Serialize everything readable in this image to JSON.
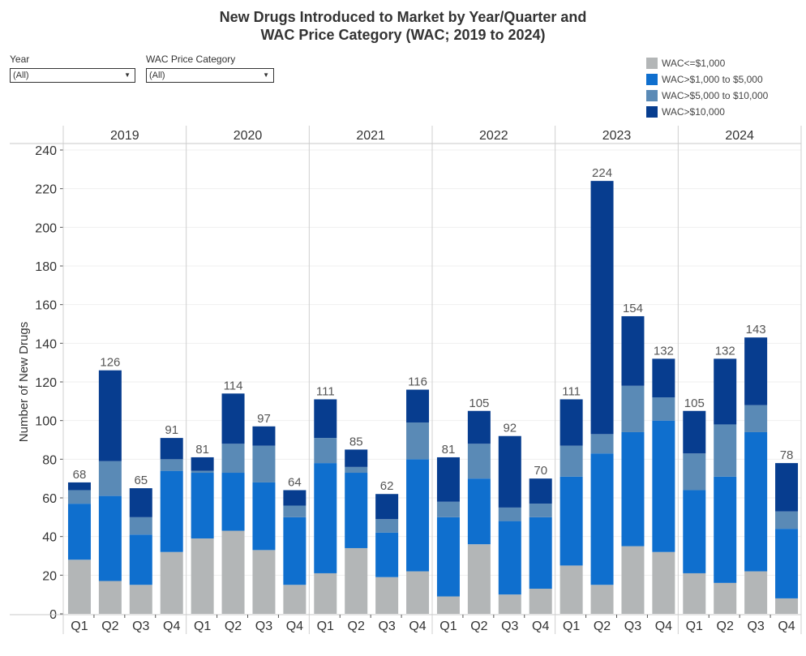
{
  "title_line1": "New Drugs Introduced to Market by Year/Quarter and",
  "title_line2": "WAC Price Category (WAC; 2019 to 2024)",
  "filters": [
    {
      "label": "Year",
      "value": "(All)",
      "icon": "dropdown-arrow-icon"
    },
    {
      "label": "WAC Price Category",
      "value": "(All)",
      "icon": "dropdown-arrow-icon"
    }
  ],
  "chart_data": {
    "type": "bar",
    "stacked": true,
    "title": "New Drugs Introduced to Market by Year/Quarter and WAC Price Category (WAC; 2019 to 2024)",
    "xlabel": "",
    "ylabel": "Number of New Drugs",
    "ylim": [
      0,
      240
    ],
    "yticks": [
      0,
      20,
      40,
      60,
      80,
      100,
      120,
      140,
      160,
      180,
      200,
      220,
      240
    ],
    "grid": true,
    "legend_position": "top-right",
    "years": [
      "2019",
      "2020",
      "2021",
      "2022",
      "2023",
      "2024"
    ],
    "quarters": [
      "Q1",
      "Q2",
      "Q3",
      "Q4"
    ],
    "categories": [
      "2019 Q1",
      "2019 Q2",
      "2019 Q3",
      "2019 Q4",
      "2020 Q1",
      "2020 Q2",
      "2020 Q3",
      "2020 Q4",
      "2021 Q1",
      "2021 Q2",
      "2021 Q3",
      "2021 Q4",
      "2022 Q1",
      "2022 Q2",
      "2022 Q3",
      "2022 Q4",
      "2023 Q1",
      "2023 Q2",
      "2023 Q3",
      "2023 Q4",
      "2024 Q1",
      "2024 Q2",
      "2024 Q3",
      "2024 Q4"
    ],
    "series": [
      {
        "name": "WAC<=$1,000",
        "color": "#b3b6b7",
        "values": [
          28,
          17,
          15,
          32,
          39,
          43,
          33,
          15,
          21,
          34,
          19,
          22,
          9,
          36,
          10,
          13,
          25,
          15,
          35,
          32,
          21,
          16,
          22,
          8
        ]
      },
      {
        "name": "WAC>$1,000 to $5,000",
        "color": "#0f6fce",
        "values": [
          29,
          44,
          26,
          42,
          34,
          30,
          35,
          35,
          57,
          39,
          23,
          58,
          41,
          34,
          38,
          37,
          46,
          68,
          59,
          68,
          43,
          55,
          72,
          36
        ]
      },
      {
        "name": "WAC>$5,000 to $10,000",
        "color": "#5a8ab6",
        "values": [
          7,
          18,
          9,
          6,
          1,
          15,
          19,
          6,
          13,
          3,
          7,
          19,
          8,
          18,
          7,
          7,
          16,
          10,
          24,
          12,
          19,
          27,
          14,
          9
        ]
      },
      {
        "name": "WAC>$10,000",
        "color": "#073d8f",
        "values": [
          4,
          47,
          15,
          11,
          7,
          26,
          10,
          8,
          20,
          9,
          13,
          17,
          23,
          17,
          37,
          13,
          24,
          131,
          36,
          20,
          22,
          34,
          35,
          25
        ]
      }
    ],
    "totals": [
      68,
      126,
      65,
      91,
      81,
      114,
      97,
      64,
      111,
      85,
      62,
      116,
      81,
      105,
      92,
      70,
      111,
      224,
      154,
      132,
      105,
      132,
      143,
      78
    ]
  }
}
